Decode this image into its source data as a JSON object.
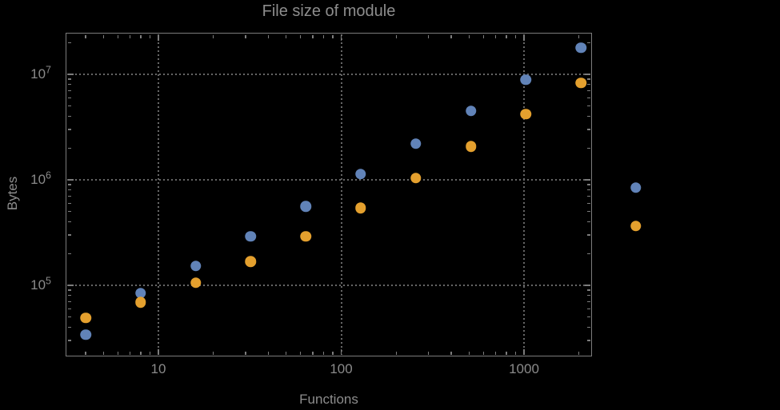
{
  "title": "File size of module",
  "axes": {
    "x": {
      "label": "Functions",
      "scale": "log",
      "ticks": [
        {
          "v": 10,
          "label": "10"
        },
        {
          "v": 100,
          "label": "100"
        },
        {
          "v": 1000,
          "label": "1000"
        }
      ]
    },
    "y": {
      "label": "Bytes",
      "scale": "log",
      "ticks": [
        {
          "v": 100000,
          "base": "10",
          "exp": "5"
        },
        {
          "v": 1000000,
          "base": "10",
          "exp": "6"
        },
        {
          "v": 10000000,
          "base": "10",
          "exp": "7"
        }
      ]
    }
  },
  "chart_data": {
    "type": "scatter",
    "title": "File size of module",
    "xlabel": "Functions",
    "ylabel": "Bytes",
    "xscale": "log",
    "yscale": "log",
    "xlim": [
      3.1,
      2330
    ],
    "ylim": [
      21500,
      24300000
    ],
    "grid": true,
    "legend": "none",
    "x": [
      4,
      8,
      16,
      32,
      64,
      128,
      256,
      512,
      1024,
      2048,
      4096
    ],
    "x_tick_labels": [
      "10",
      "100",
      "1000"
    ],
    "y_tick_labels": [
      "10^5",
      "10^6",
      "10^7"
    ],
    "note": "last x value (4096) is plotted outside the right edge of the frame",
    "series": [
      {
        "name": "series-1-blue",
        "color": "#6183b8",
        "values": [
          34000,
          84000,
          152000,
          290000,
          560000,
          1130000,
          2200000,
          4500000,
          8900000,
          17800000,
          840000
        ]
      },
      {
        "name": "series-2-orange",
        "color": "#e4a02e",
        "values": [
          49000,
          69000,
          106000,
          168000,
          290000,
          540000,
          1040000,
          2080000,
          4200000,
          8300000,
          365000
        ]
      }
    ]
  },
  "colors": {
    "background": "#000000",
    "frame": "#7c7c7c",
    "grid": "#676767",
    "text": "#8d8d8d"
  }
}
